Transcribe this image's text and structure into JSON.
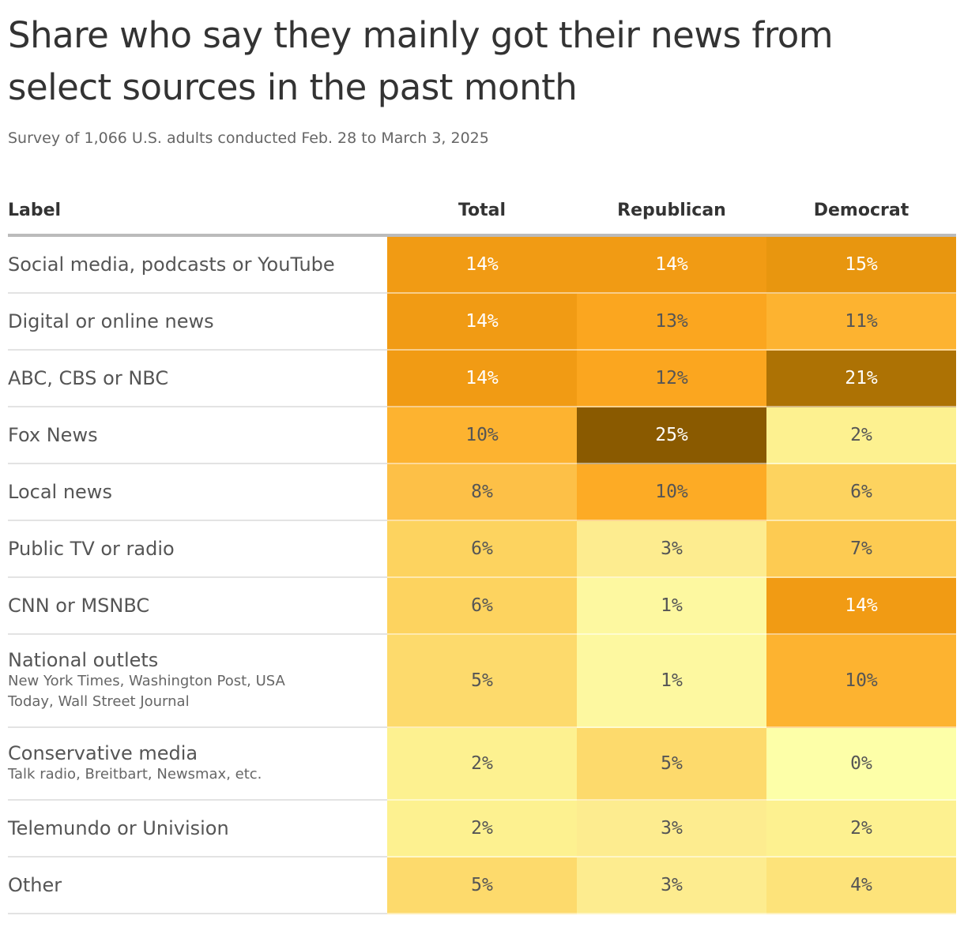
{
  "header": {
    "title": "Share who say they mainly got their news from select sources in the past month",
    "subtitle": "Survey of 1,066 U.S. adults conducted Feb. 28 to March 3, 2025"
  },
  "table": {
    "columns": [
      "Label",
      "Total",
      "Republican",
      "Democrat"
    ],
    "rows": [
      {
        "label": "Social media, podcasts or YouTube",
        "cells": [
          "14%",
          "14%",
          "15%"
        ],
        "colors": [
          "#f19b14",
          "#f19b14",
          "#e8960f"
        ]
      },
      {
        "label": "Digital or online news",
        "cells": [
          "14%",
          "13%",
          "11%"
        ],
        "colors": [
          "#f19b14",
          "#fba61f",
          "#fdb330"
        ]
      },
      {
        "label": "ABC, CBS or NBC",
        "cells": [
          "14%",
          "12%",
          "21%"
        ],
        "colors": [
          "#f19b14",
          "#fba61f",
          "#ad7204"
        ]
      },
      {
        "label": "Fox News",
        "cells": [
          "10%",
          "25%",
          "2%"
        ],
        "colors": [
          "#fdb330",
          "#8a5a00",
          "#fdf190"
        ]
      },
      {
        "label": "Local news",
        "cells": [
          "8%",
          "10%",
          "6%"
        ],
        "colors": [
          "#fdc047",
          "#fdab25",
          "#fdd35f"
        ]
      },
      {
        "label": "Public TV or radio",
        "cells": [
          "6%",
          "3%",
          "7%"
        ],
        "colors": [
          "#fdd35f",
          "#fdec8f",
          "#fdcb52"
        ]
      },
      {
        "label": "CNN or MSNBC",
        "cells": [
          "6%",
          "1%",
          "14%"
        ],
        "colors": [
          "#fdd35f",
          "#fdf8a0",
          "#f19b14"
        ]
      },
      {
        "label": "National outlets",
        "sublabel": "New York Times, Washington Post, USA Today, Wall Street Journal",
        "cells": [
          "5%",
          "1%",
          "10%"
        ],
        "colors": [
          "#fdda6c",
          "#fdf8a0",
          "#fdb330"
        ]
      },
      {
        "label": "Conservative media",
        "sublabel": "Talk radio, Breitbart, Newsmax, etc.",
        "cells": [
          "2%",
          "5%",
          "0%"
        ],
        "colors": [
          "#fdf190",
          "#fdda6c",
          "#fdffa8"
        ]
      },
      {
        "label": "Telemundo or Univision",
        "cells": [
          "2%",
          "3%",
          "2%"
        ],
        "colors": [
          "#fdf190",
          "#fdec8f",
          "#fdf190"
        ]
      },
      {
        "label": "Other",
        "cells": [
          "5%",
          "3%",
          "4%"
        ],
        "colors": [
          "#fdda6c",
          "#fdec8f",
          "#fde37a"
        ]
      }
    ]
  }
}
